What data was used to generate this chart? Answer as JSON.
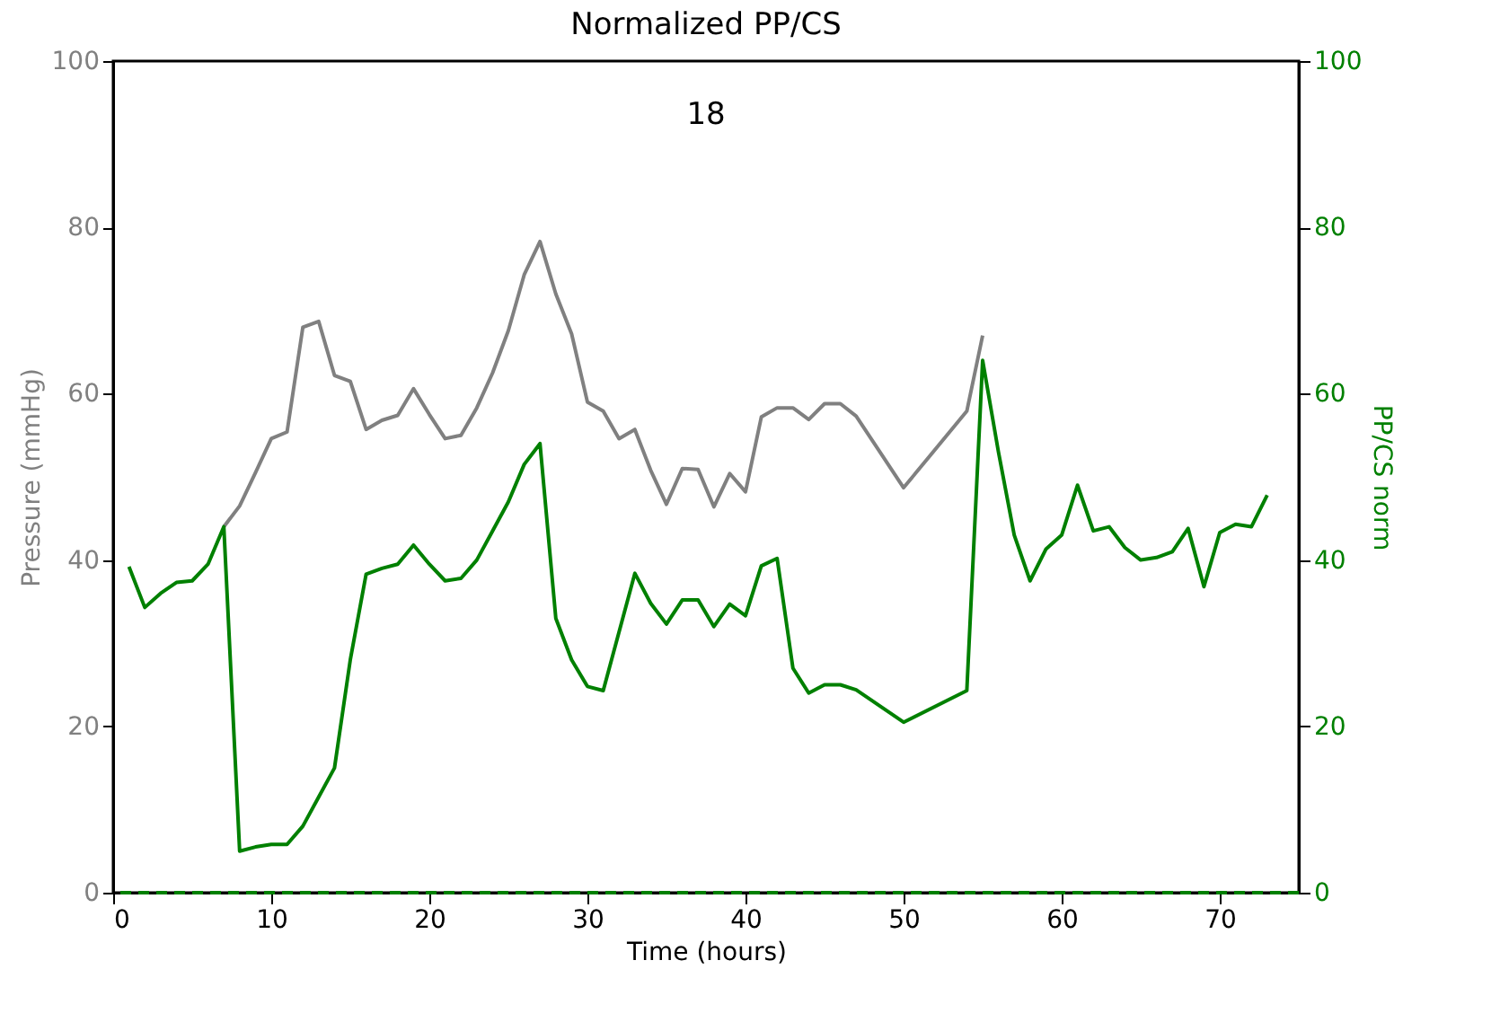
{
  "chart_data": {
    "type": "line",
    "title": "Normalized PP/CS",
    "annotations": [
      "18"
    ],
    "xlabel": "Time (hours)",
    "ylabel": "Pressure (mmHg)",
    "y2label": "PP/CS norm",
    "xlim": [
      0,
      75
    ],
    "xticks": [
      0,
      10,
      20,
      30,
      40,
      50,
      60,
      70
    ],
    "ylim": [
      0,
      100
    ],
    "yticks": [
      0,
      20,
      40,
      60,
      80,
      100
    ],
    "y2lim": [
      0,
      100
    ],
    "y2ticks": [
      0,
      20,
      40,
      60,
      80,
      100
    ],
    "grid": false,
    "line_style": "solid",
    "series": [
      {
        "color": "#808080",
        "axis": "y",
        "x": [
          7,
          8,
          9,
          10,
          11,
          12,
          13,
          14,
          15,
          16,
          17,
          18,
          19,
          20,
          21,
          22,
          23,
          24,
          25,
          26,
          27,
          28,
          29,
          30,
          31,
          32,
          33,
          34,
          35,
          36,
          37,
          38,
          39,
          40,
          41,
          42,
          43,
          44,
          45,
          46,
          47,
          50,
          54,
          55
        ],
        "values": [
          44,
          46.5,
          50.5,
          54.6,
          55.4,
          68,
          68.7,
          62.2,
          61.5,
          55.7,
          56.8,
          57.4,
          60.6,
          57.5,
          54.6,
          55,
          58.3,
          62.5,
          67.6,
          74.3,
          78.3,
          72,
          67.2,
          59,
          57.9,
          54.6,
          55.7,
          50.8,
          46.7,
          51,
          50.9,
          46.4,
          50.4,
          48.2,
          57.2,
          58.3,
          58.3,
          56.9,
          58.8,
          58.8,
          57.3,
          48.7,
          57.9,
          67
        ]
      },
      {
        "color": "#008000",
        "axis": "y2",
        "x": [
          1,
          2,
          3,
          4,
          5,
          6,
          7,
          8,
          9,
          10,
          11,
          12,
          13,
          14,
          15,
          16,
          17,
          18,
          19,
          20,
          21,
          22,
          23,
          24,
          25,
          26,
          27,
          28,
          29,
          30,
          31,
          33,
          34,
          35,
          36,
          37,
          38,
          39,
          40,
          41,
          42,
          43,
          44,
          45,
          46,
          47,
          50,
          54,
          55,
          56,
          57,
          58,
          59,
          60,
          61,
          62,
          63,
          64,
          65,
          66,
          67,
          68,
          69,
          70,
          71,
          72,
          73
        ],
        "values": [
          39.2,
          34.3,
          36,
          37.3,
          37.5,
          39.5,
          44,
          5,
          5.5,
          5.8,
          5.8,
          8,
          11.5,
          15,
          28,
          38.3,
          39,
          39.5,
          41.8,
          39.5,
          37.5,
          37.8,
          40,
          43.5,
          47,
          51.5,
          54,
          33,
          28,
          24.8,
          24.3,
          38.4,
          34.8,
          32.3,
          35.2,
          35.2,
          32,
          34.7,
          33.3,
          39.3,
          40.2,
          27,
          24,
          25,
          25,
          24.4,
          20.5,
          24.3,
          64,
          53,
          43,
          37.5,
          41.3,
          43,
          49,
          43.5,
          44,
          41.5,
          40,
          40.3,
          41,
          43.8,
          36.8,
          43.3,
          44.3,
          44,
          47.8
        ]
      }
    ],
    "ref_lines": [
      {
        "axis": "y2",
        "value": 0,
        "line_style": "dashed"
      }
    ]
  }
}
